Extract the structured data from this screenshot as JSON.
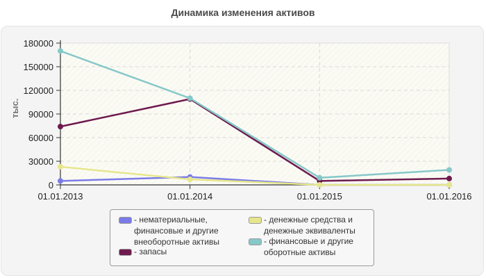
{
  "header": {
    "title": "Динамика изменения активов"
  },
  "chart_data": {
    "type": "line",
    "title": "Динамика изменения активов",
    "xlabel": "",
    "ylabel": "тыс.",
    "ylim": [
      0,
      180000
    ],
    "yticks": [
      0,
      30000,
      60000,
      90000,
      120000,
      150000,
      180000
    ],
    "ytick_labels": [
      "0",
      "30000",
      "60000",
      "90000",
      "120000",
      "150000",
      "180000"
    ],
    "categories": [
      "01.01.2013",
      "01.01.2014",
      "01.01.2015",
      "01.01.2016"
    ],
    "grid": true,
    "legend_position": "bottom",
    "series": [
      {
        "name": "нематериальные, финансовые и другие внеоборотные активы",
        "color": "#7b7be8",
        "values": [
          5000,
          10000,
          0,
          0
        ]
      },
      {
        "name": "запасы",
        "color": "#6e1a4e",
        "values": [
          74000,
          109000,
          5000,
          8000
        ]
      },
      {
        "name": "денежные средства и денежные эквиваленты",
        "color": "#e6e68c",
        "values": [
          23000,
          7000,
          0,
          0
        ]
      },
      {
        "name": "финансовые и другие оборотные активы",
        "color": "#86c8c8",
        "values": [
          170000,
          110000,
          9000,
          19000
        ]
      }
    ]
  },
  "legend": {
    "items": [
      {
        "label": "- нематериальные,\nфинансовые и другие\nвнеоборотные активы",
        "color": "#7b7be8"
      },
      {
        "label": "- запасы",
        "color": "#6e1a4e"
      },
      {
        "label": "- денежные средства и\nденежные эквиваленты",
        "color": "#e6e68c"
      },
      {
        "label": "- финансовые и другие\nоборотные активы",
        "color": "#86c8c8"
      }
    ]
  }
}
